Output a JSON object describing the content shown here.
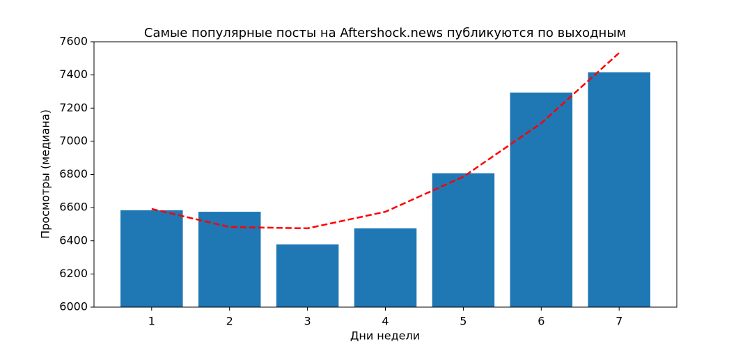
{
  "chart_data": {
    "type": "bar",
    "title": "Самые популярные посты на Aftershock.news публикуются по выходным",
    "x_label": "Дни недели",
    "y_label": "Просмотры (медиана)",
    "x": [
      1,
      2,
      3,
      4,
      5,
      6,
      7
    ],
    "series": [
      {
        "type": "bar",
        "color": "#1f77b4",
        "values": [
          6584,
          6575,
          6378,
          6475,
          6807,
          7294,
          7416
        ]
      },
      {
        "type": "line",
        "color": "#ff0000",
        "dashed": true,
        "values": [
          6592,
          6483,
          6475,
          6575,
          6786,
          7109,
          7533
        ]
      }
    ],
    "xlim": [
      0.26,
      7.74
    ],
    "xticks": [
      1,
      2,
      3,
      4,
      5,
      6,
      7
    ],
    "ylim": [
      6000,
      7600
    ],
    "yticks": [
      6000,
      6200,
      6400,
      6600,
      6800,
      7000,
      7200,
      7400,
      7600
    ],
    "grid": false
  }
}
